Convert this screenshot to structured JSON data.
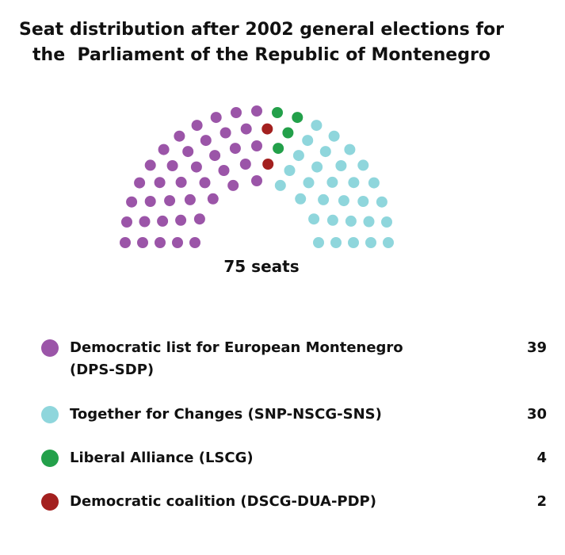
{
  "title": {
    "line1": "Seat distribution after 2002 general elections for",
    "line2": "the  Parliament of the Republic of Montenegro"
  },
  "total_label": "75 seats",
  "chart_data": {
    "type": "parliament",
    "title": "Seat distribution after 2002 general elections for the Parliament of the Republic of Montenegro",
    "total": 75,
    "series": [
      {
        "name": "Democratic list for European Montenegro (DPS-SDP)",
        "value": 39,
        "color": "#9b55a8"
      },
      {
        "name": "Together for Changes (SNP-NSCG-SNS)",
        "value": 30,
        "color": "#8fd6dc"
      },
      {
        "name": "Liberal Alliance (LSCG)",
        "value": 4,
        "color": "#23a04a"
      },
      {
        "name": "Democratic coalition (DSCG-DUA-PDP)",
        "value": 2,
        "color": "#a3201f"
      }
    ]
  },
  "legend": [
    {
      "label_line1": "Democratic list for European Montenegro",
      "label_line2": "(DPS-SDP)",
      "value": "39",
      "color": "#9b55a8"
    },
    {
      "label_line1": "Together for Changes (SNP-NSCG-SNS)",
      "label_line2": "",
      "value": "30",
      "color": "#8fd6dc"
    },
    {
      "label_line1": "Liberal Alliance (LSCG)",
      "label_line2": "",
      "value": "4",
      "color": "#23a04a"
    },
    {
      "label_line1": "Democratic coalition (DSCG-DUA-PDP)",
      "label_line2": "",
      "value": "2",
      "color": "#a3201f"
    }
  ]
}
